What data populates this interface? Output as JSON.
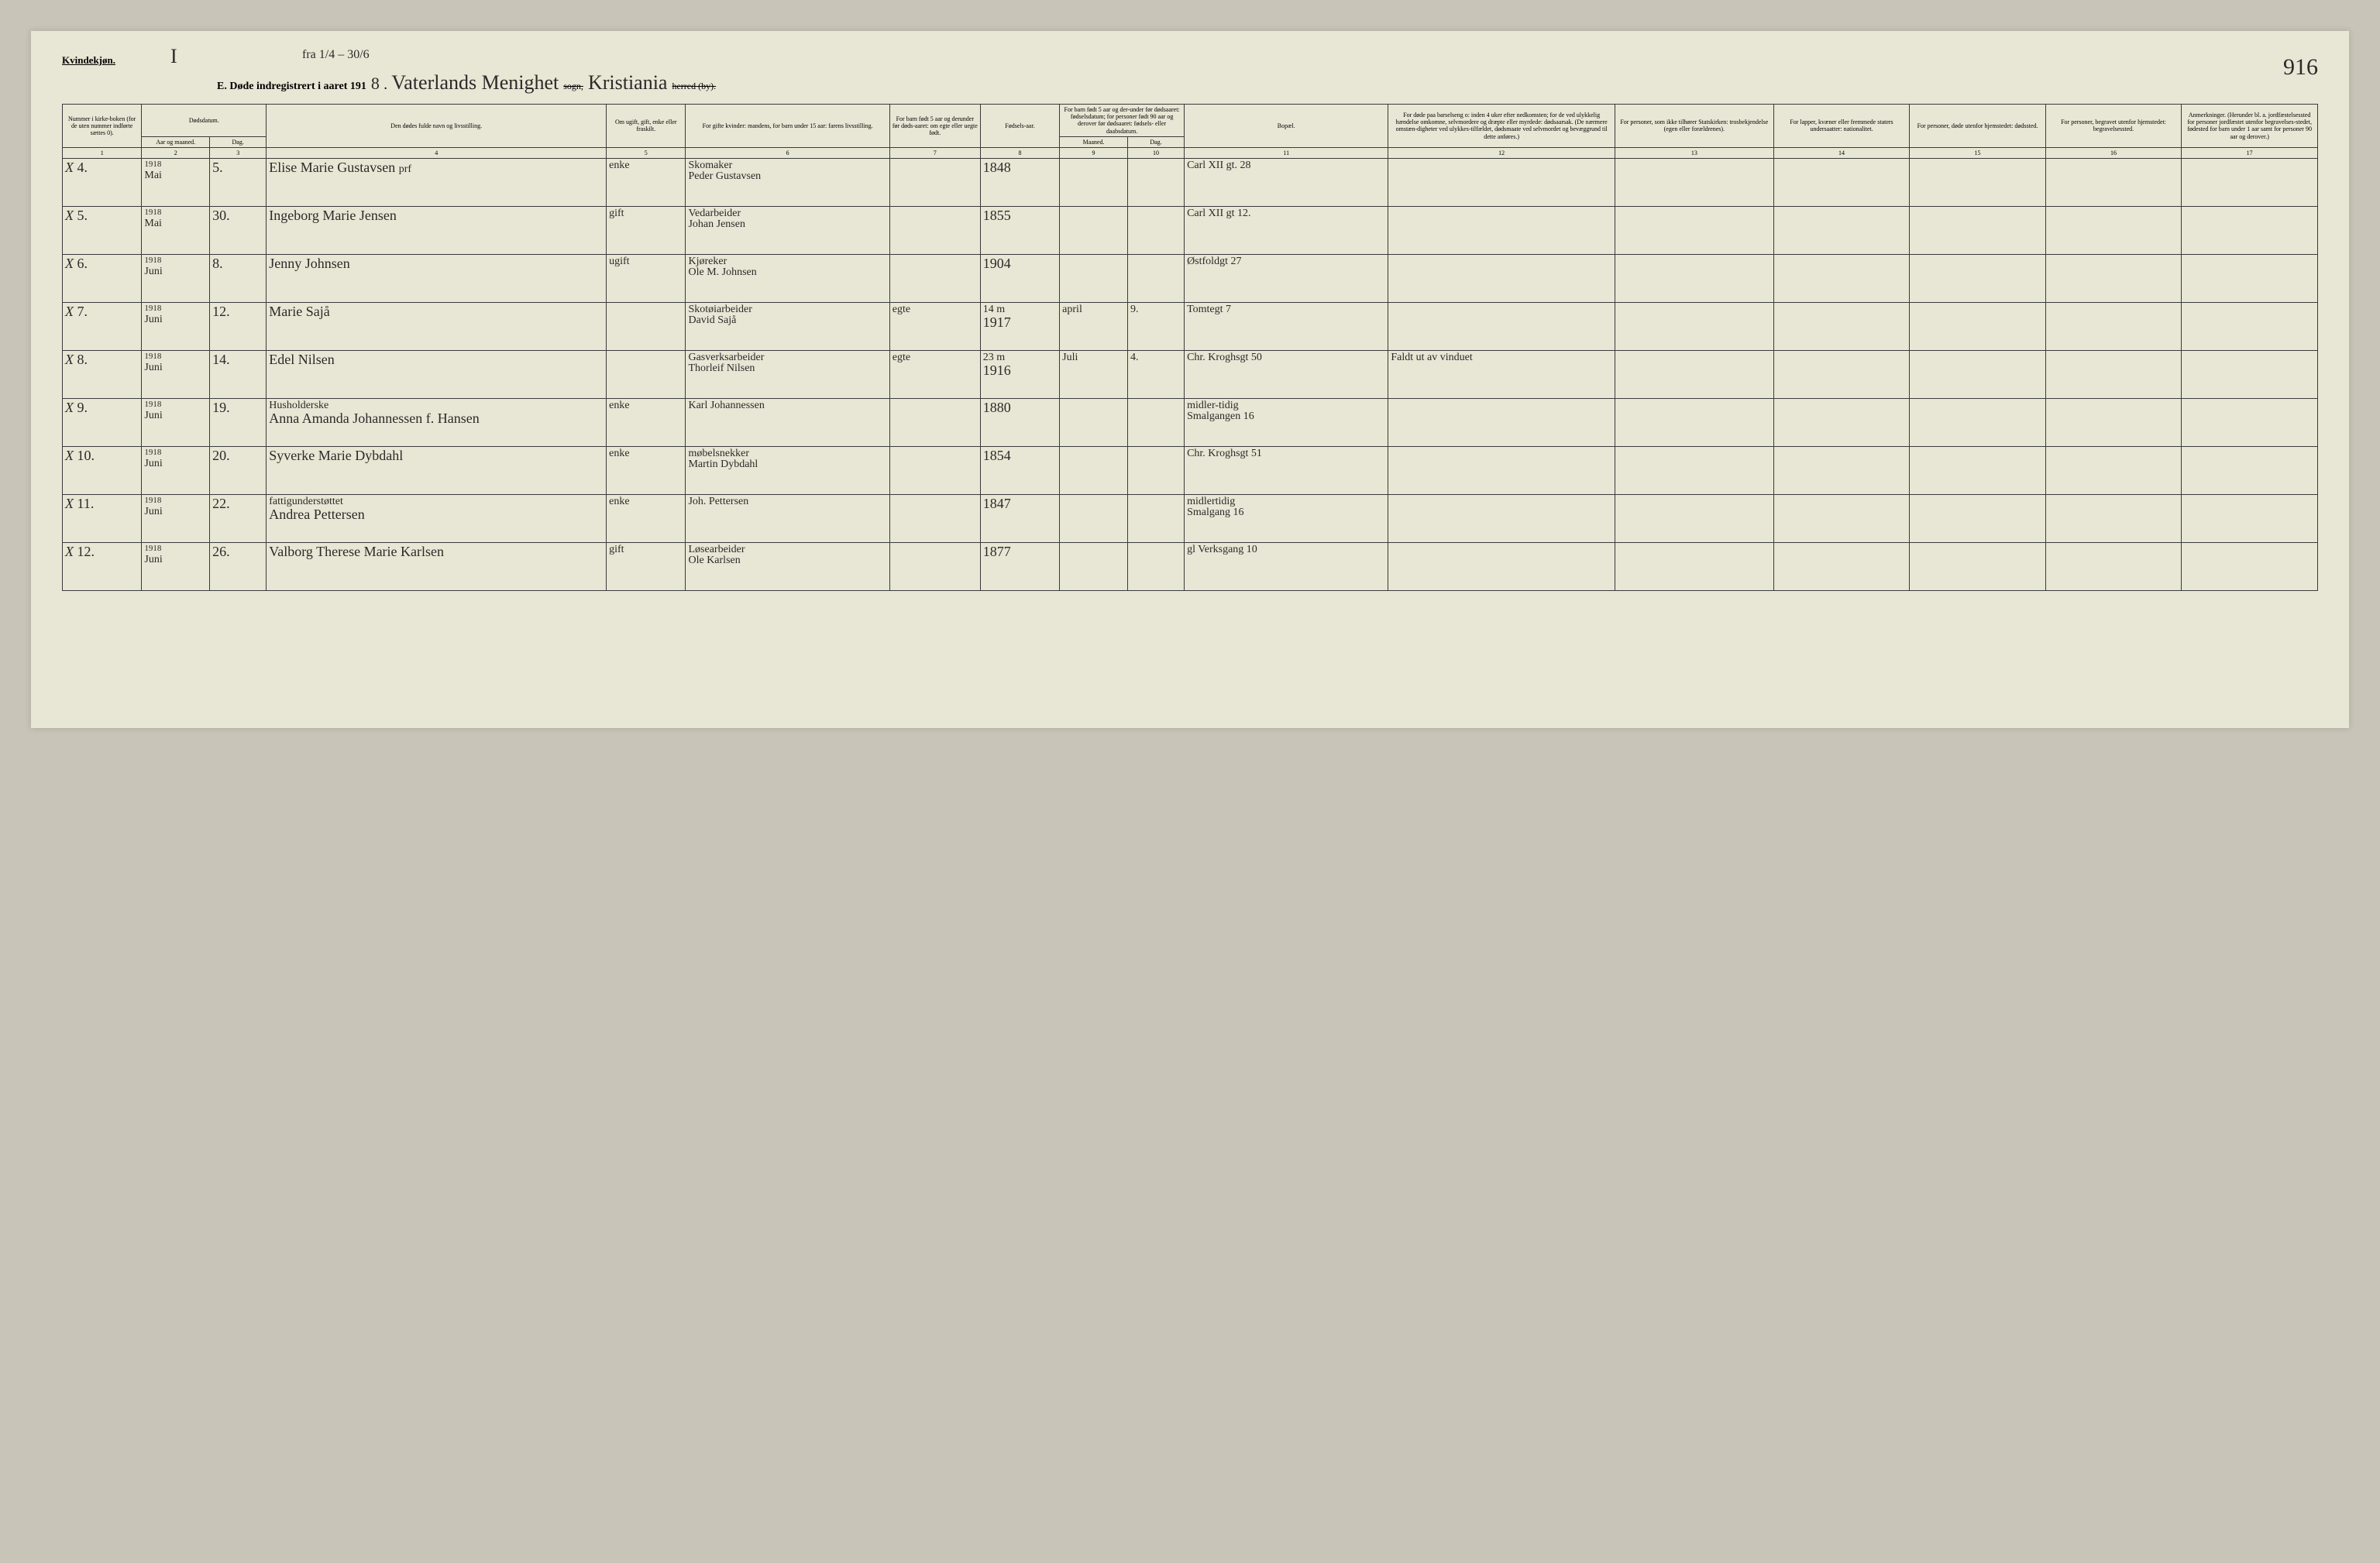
{
  "header": {
    "kvindekjon": "Kvindekjøn.",
    "topMark": "I",
    "fraAnnotation": "fra 1/4 – 30/6",
    "titlePrefix": "E.  Døde indregistrert i aaret 191",
    "yearDigit": "8",
    "parishCursive": "Vaterlands Menighet",
    "sognLabel": "sogn,",
    "cityCursive": "Kristiania",
    "herredLabel": "herred (by).",
    "pageNumber": "916"
  },
  "columns": {
    "c1": "Nummer i kirke-boken (for de uten nummer indførte sættes 0).",
    "c2a": "Dødsdatum.",
    "c2b": "Aar og maaned.",
    "c3": "Dag.",
    "c4": "Den dødes fulde navn og livsstilling.",
    "c5": "Om ugift, gift, enke eller fraskilt.",
    "c6": "For gifte kvinder: mandens, for barn under 15 aar: farens livsstilling.",
    "c7": "For barn født 5 aar og derunder før døds-aaret: om egte eller uegte født.",
    "c8": "Fødsels-aar.",
    "c9": "For barn født 5 aar og der-under før dødsaaret: fødselsdatum; for personer født 90 aar og derover før dødsaaret: fødsels- eller daabsdatum.",
    "c9a": "Maaned.",
    "c9b": "Dag.",
    "c11": "Bopæl.",
    "c12": "For døde paa barselseng o: inden 4 uker efter nedkomsten; for de ved ulykkelig hændelse omkomne, selvmordere og dræpte eller myrdede: dødsaarsak. (De nærmere omstæn-digheter ved ulykkes-tilfældet, dødsmaate ved selvmordet og bevæggrund til dette anføres.)",
    "c13": "For personer, som ikke tilhører Statskirken: trosbekjendelse (egen eller forældrenes).",
    "c14": "For lapper, kvæner eller fremmede staters undersaatter: nationalitet.",
    "c15": "For personer, døde utenfor hjemstedet: dødssted.",
    "c16": "For personer, begravet utenfor hjemstedet: begravelsessted.",
    "c17": "Anmerkninger. (Herunder bl. a. jordfæstelsessted for personer jordfæstet utenfor begravelses-stedet, fødested for barn under 1 aar samt for personer 90 aar og derover.)"
  },
  "colNums": [
    "1",
    "2",
    "3",
    "4",
    "5",
    "6",
    "7",
    "8",
    "9",
    "10",
    "11",
    "12",
    "13",
    "14",
    "15",
    "16",
    "17"
  ],
  "rows": [
    {
      "mark": "X",
      "num": "4.",
      "year": "1918",
      "month": "Mai",
      "day": "5.",
      "name": "Elise Marie Gustavsen",
      "nameNote": "prf",
      "status": "enke",
      "spouseOcc": "Skomaker",
      "spouseName": "Peder Gustavsen",
      "egte": "",
      "birthYear": "1848",
      "bMonth": "",
      "bDay": "",
      "bopael": "Carl XII gt. 28",
      "cause": ""
    },
    {
      "mark": "X",
      "num": "5.",
      "year": "1918",
      "month": "Mai",
      "day": "30.",
      "name": "Ingeborg Marie Jensen",
      "nameNote": "",
      "status": "gift",
      "spouseOcc": "Vedarbeider",
      "spouseName": "Johan Jensen",
      "egte": "",
      "birthYear": "1855",
      "bMonth": "",
      "bDay": "",
      "bopael": "Carl XII gt 12.",
      "cause": ""
    },
    {
      "mark": "X",
      "num": "6.",
      "year": "1918",
      "month": "Juni",
      "day": "8.",
      "name": "Jenny Johnsen",
      "nameNote": "",
      "status": "ugift",
      "spouseOcc": "Kjøreker",
      "spouseName": "Ole M. Johnsen",
      "egte": "",
      "birthYear": "1904",
      "bMonth": "",
      "bDay": "",
      "bopael": "Østfoldgt 27",
      "cause": ""
    },
    {
      "mark": "X",
      "num": "7.",
      "year": "1918",
      "month": "Juni",
      "day": "12.",
      "name": "Marie Sajå",
      "nameNote": "",
      "status": "",
      "spouseOcc": "Skotøiarbeider",
      "spouseName": "David Sajå",
      "egte": "egte",
      "birthYear": "1917",
      "birthYearNote": "14 m",
      "bMonth": "april",
      "bDay": "9.",
      "bopael": "Tomtegt 7",
      "cause": ""
    },
    {
      "mark": "X",
      "num": "8.",
      "year": "1918",
      "month": "Juni",
      "day": "14.",
      "name": "Edel Nilsen",
      "nameNote": "",
      "status": "",
      "spouseOcc": "Gasverksarbeider",
      "spouseName": "Thorleif Nilsen",
      "egte": "egte",
      "birthYear": "1916",
      "birthYearNote": "23 m",
      "bMonth": "Juli",
      "bDay": "4.",
      "bopael": "Chr. Kroghsgt 50",
      "cause": "Faldt ut av vinduet"
    },
    {
      "mark": "X",
      "num": "9.",
      "year": "1918",
      "month": "Juni",
      "day": "19.",
      "name": "Anna Amanda Johannessen f. Hansen",
      "nameTop": "Husholderske",
      "status": "enke",
      "spouseOcc": "",
      "spouseName": "Karl Johannessen",
      "egte": "",
      "birthYear": "1880",
      "bMonth": "",
      "bDay": "",
      "bopael": "Smalgangen 16",
      "bopaelTop": "midler-tidig",
      "cause": ""
    },
    {
      "mark": "X",
      "num": "10.",
      "year": "1918",
      "month": "Juni",
      "day": "20.",
      "name": "Syverke Marie Dybdahl",
      "nameNote": "",
      "status": "enke",
      "spouseOcc": "møbelsnekker",
      "spouseName": "Martin Dybdahl",
      "egte": "",
      "birthYear": "1854",
      "bMonth": "",
      "bDay": "",
      "bopael": "Chr. Kroghsgt 51",
      "cause": ""
    },
    {
      "mark": "X",
      "num": "11.",
      "year": "1918",
      "month": "Juni",
      "day": "22.",
      "name": "Andrea Pettersen",
      "nameTop": "fattigunderstøttet",
      "status": "enke",
      "spouseOcc": "",
      "spouseName": "Joh. Pettersen",
      "egte": "",
      "birthYear": "1847",
      "bMonth": "",
      "bDay": "",
      "bopael": "Smalgang 16",
      "bopaelTop": "midlertidig",
      "cause": ""
    },
    {
      "mark": "X",
      "num": "12.",
      "year": "1918",
      "month": "Juni",
      "day": "26.",
      "name": "Valborg Therese Marie Karlsen",
      "nameNote": "",
      "status": "gift",
      "spouseOcc": "Løsearbeider",
      "spouseName": "Ole Karlsen",
      "egte": "",
      "birthYear": "1877",
      "bMonth": "",
      "bDay": "",
      "bopael": "gl Verksgang 10",
      "cause": ""
    }
  ],
  "colors": {
    "pageBg": "#e8e6d4",
    "bodyBg": "#c8c4b8",
    "ink": "#2a2a2a",
    "rule": "#3a3a3a",
    "purple": "#7a4a9a"
  }
}
